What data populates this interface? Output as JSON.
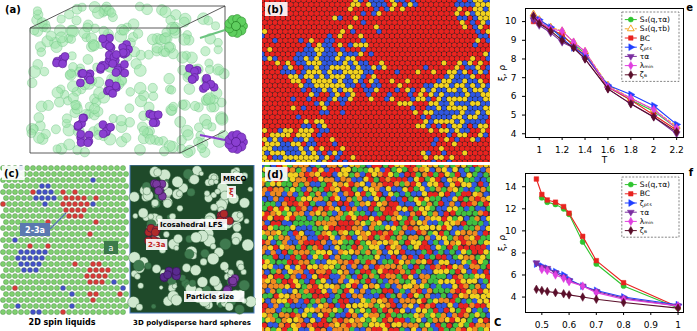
{
  "panels": {
    "a": {
      "label": "(a)"
    },
    "b": {
      "label": "(b)"
    },
    "c": {
      "label": "(c)",
      "left_title": "2D spin liquids",
      "right_title": "3D polydisperse hard spheres",
      "left_notes": [
        "2-3a",
        "a"
      ],
      "right_notes": [
        "MRCO",
        "ξ",
        "Icosahedral LFS",
        "2-3a",
        "Particle size"
      ]
    },
    "d": {
      "label": "(d)"
    }
  },
  "chart_data": [
    {
      "type": "line",
      "panel_label": "e",
      "x_label": "T",
      "y_label": "ξ, ρ",
      "xlim": [
        0.88,
        2.26
      ],
      "xticks": [
        1,
        1.2,
        1.4,
        1.6,
        1.8,
        2,
        2.2
      ],
      "ylim": [
        3.8,
        10.7
      ],
      "yticks": [
        4,
        5,
        6,
        7,
        8,
        9,
        10
      ],
      "legend": "top-right",
      "grid": false,
      "x": [
        0.95,
        1.0,
        1.1,
        1.2,
        1.3,
        1.4,
        1.6,
        1.8,
        2.0,
        2.2
      ],
      "series": [
        {
          "name": "S₄(q,τα)",
          "color": "#2fc42f",
          "marker": "circle",
          "line_style": "solid",
          "values": [
            10.3,
            10.0,
            9.6,
            9.2,
            8.8,
            8.3,
            6.5,
            5.8,
            5.2,
            4.3
          ]
        },
        {
          "name": "S₄(q,τb)",
          "color": "#f5a623",
          "marker": "open-triangle",
          "line_style": "dashed",
          "values": [
            10.4,
            10.1,
            9.7,
            9.5,
            8.9,
            8.4,
            6.6,
            5.9,
            5.3,
            4.4
          ]
        },
        {
          "name": "BC",
          "color": "#e8231f",
          "marker": "square",
          "line_style": "solid",
          "values": [
            10.0,
            9.9,
            9.6,
            9.3,
            8.7,
            8.2,
            6.5,
            5.8,
            5.0,
            4.2
          ]
        },
        {
          "name": "ζₚₜₛ",
          "color": "#1f3fff",
          "marker": "triangle-right",
          "line_style": "solid",
          "values": [
            10.2,
            10.1,
            9.7,
            9.1,
            8.6,
            8.2,
            6.6,
            6.1,
            5.5,
            4.5
          ]
        },
        {
          "name": "τα",
          "color": "#7b2fa0",
          "marker": "triangle-down",
          "line_style": "solid",
          "values": [
            10.1,
            9.8,
            9.4,
            8.9,
            8.6,
            8.0,
            6.4,
            5.6,
            4.9,
            4.0
          ]
        },
        {
          "name": "λₘᵢₙ",
          "color": "#e040e0",
          "marker": "diamond",
          "line_style": "solid",
          "values": [
            10.3,
            10.0,
            9.6,
            9.5,
            8.9,
            8.4,
            6.5,
            5.9,
            5.3,
            4.3
          ]
        },
        {
          "name": "ζ₆",
          "color": "#5a0f2a",
          "marker": "diamond",
          "line_style": "solid",
          "values": [
            10.3,
            9.9,
            9.5,
            9.0,
            8.6,
            8.0,
            6.4,
            5.6,
            4.9,
            4.1
          ]
        }
      ]
    },
    {
      "type": "line",
      "panel_label": "f",
      "y_label": "ξ, ρ",
      "annotations": [
        "C"
      ],
      "xlim": [
        0.44,
        1.02
      ],
      "xticks": [
        0.5,
        0.6,
        0.7,
        0.8,
        0.9,
        1
      ],
      "ylim": [
        2.6,
        15.2
      ],
      "yticks": [
        4,
        6,
        8,
        10,
        12,
        14
      ],
      "legend": "top-right",
      "grid": false,
      "x": [
        0.48,
        0.5,
        0.52,
        0.55,
        0.58,
        0.6,
        0.65,
        0.7,
        0.8,
        1.0
      ],
      "series": [
        {
          "name": "S₄(q,τα)",
          "color": "#2fc42f",
          "marker": "circle",
          "line_style": "solid",
          "values": [
            null,
            13.0,
            12.6,
            12.4,
            12.0,
            11.5,
            9.0,
            7.0,
            5.0,
            3.0
          ]
        },
        {
          "name": "BC",
          "color": "#e8231f",
          "marker": "square",
          "line_style": "solid",
          "values": [
            14.7,
            13.3,
            12.8,
            12.6,
            12.2,
            11.6,
            9.5,
            7.3,
            5.3,
            3.1
          ]
        },
        {
          "name": "ζₚₜₛ",
          "color": "#1f3fff",
          "marker": "triangle-right",
          "line_style": "solid",
          "values": [
            7.0,
            6.8,
            6.6,
            6.3,
            6.0,
            5.6,
            5.0,
            4.6,
            4.0,
            3.3
          ]
        },
        {
          "name": "τα",
          "color": "#7b2fa0",
          "marker": "triangle-down",
          "line_style": "solid",
          "values": [
            7.1,
            6.7,
            6.6,
            6.2,
            5.8,
            5.5,
            5.0,
            4.5,
            3.9,
            3.2
          ]
        },
        {
          "name": "λₘᵢₙ",
          "color": "#e040e0",
          "marker": "diamond",
          "line_style": "solid",
          "values": [
            null,
            6.5,
            6.4,
            6.0,
            5.7,
            5.4,
            5.0,
            4.4,
            3.8,
            3.2
          ]
        },
        {
          "name": "ζ₆",
          "color": "#5a0f2a",
          "marker": "diamond",
          "line_style": "solid",
          "values": [
            4.7,
            4.6,
            4.5,
            4.4,
            4.3,
            4.2,
            4.0,
            3.8,
            3.5,
            3.0
          ]
        }
      ]
    }
  ]
}
